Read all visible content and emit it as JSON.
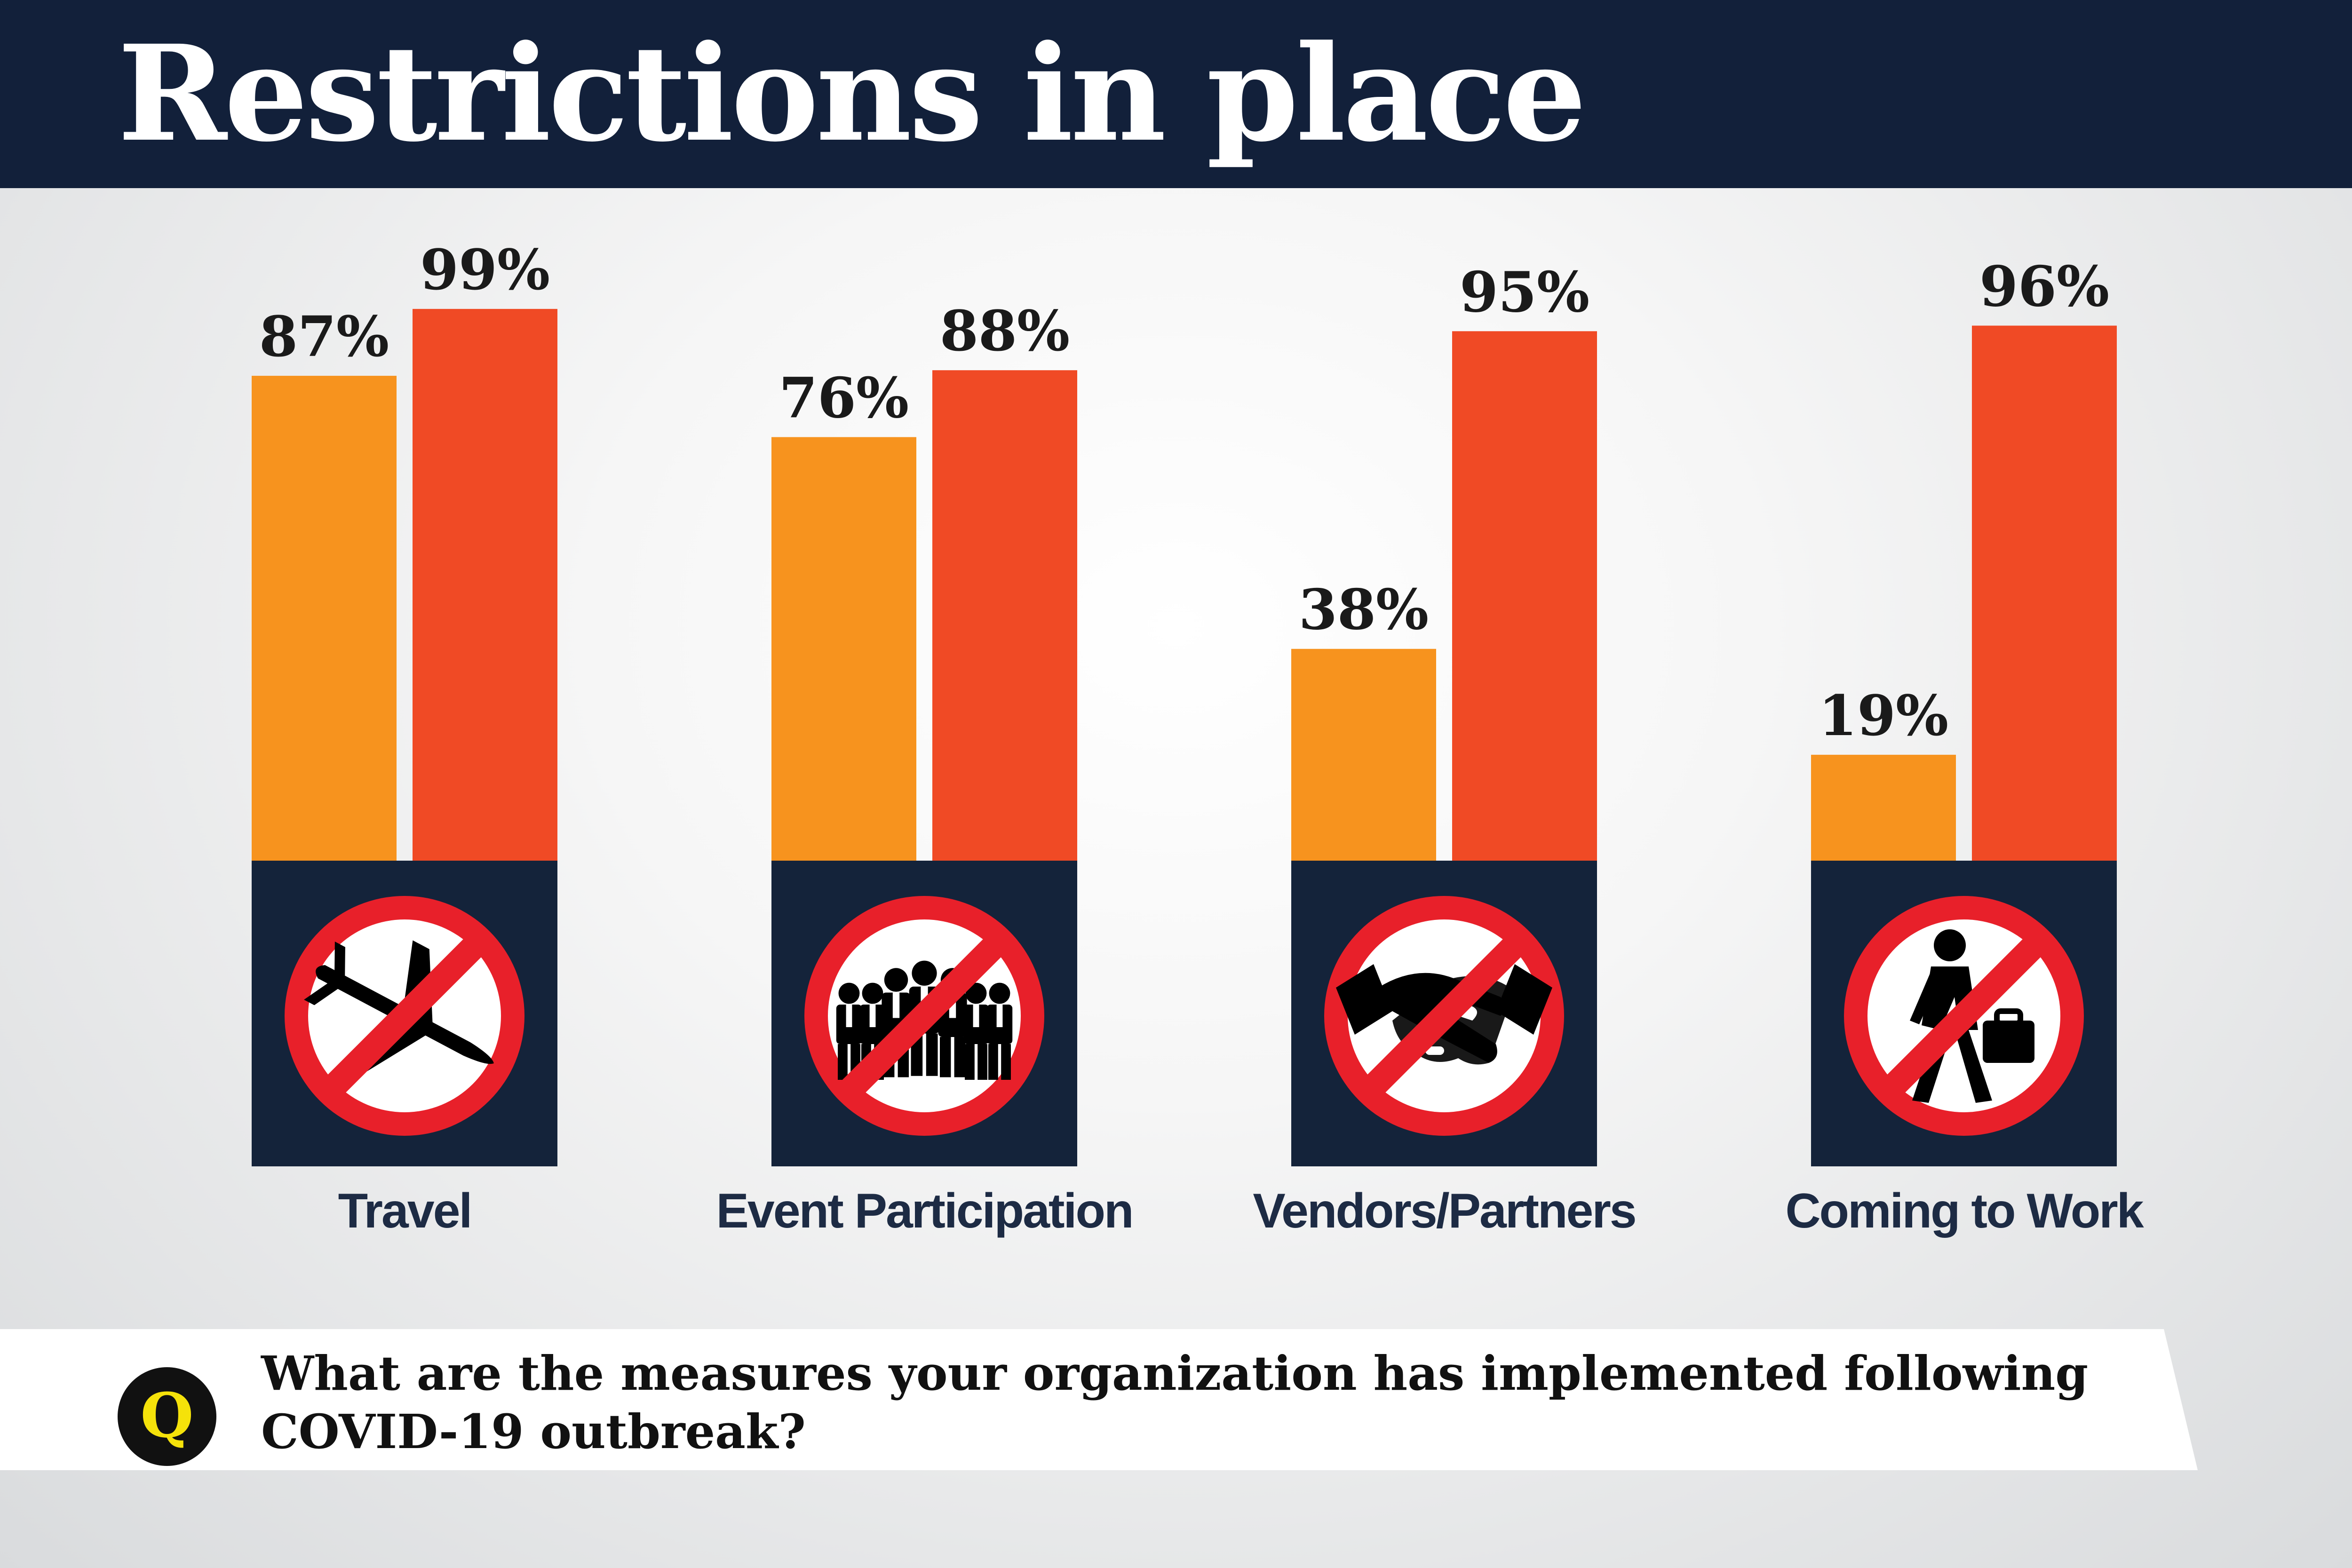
{
  "header": {
    "title": "Restrictions in place"
  },
  "colors": {
    "header_bg": "#12203a",
    "bar_series_1": "#f7931e",
    "bar_series_2": "#f04a25",
    "icon_panel": "#14233a",
    "prohibit_red": "#e8202a"
  },
  "question": {
    "badge": "Q",
    "lines": [
      "What are the measures your organization has implemented following",
      "COVID-19 outbreak?"
    ]
  },
  "chart_data": {
    "type": "bar",
    "title": "Restrictions in place",
    "categories": [
      "Travel",
      "Event Participation",
      "Vendors/Partners",
      "Coming to Work"
    ],
    "series": [
      {
        "values": [
          87,
          76,
          38,
          19
        ],
        "labels": [
          "87%",
          "76%",
          "38%",
          "19%"
        ],
        "color": "#f7931e"
      },
      {
        "values": [
          99,
          88,
          95,
          96
        ],
        "labels": [
          "99%",
          "88%",
          "95%",
          "96%"
        ],
        "color": "#f04a25"
      }
    ],
    "ylim": [
      0,
      100
    ],
    "unit": "%",
    "grid": false,
    "legend": "none",
    "icons": [
      "airplane-icon",
      "crowd-icon",
      "handshake-icon",
      "walking-commuter-icon"
    ]
  }
}
